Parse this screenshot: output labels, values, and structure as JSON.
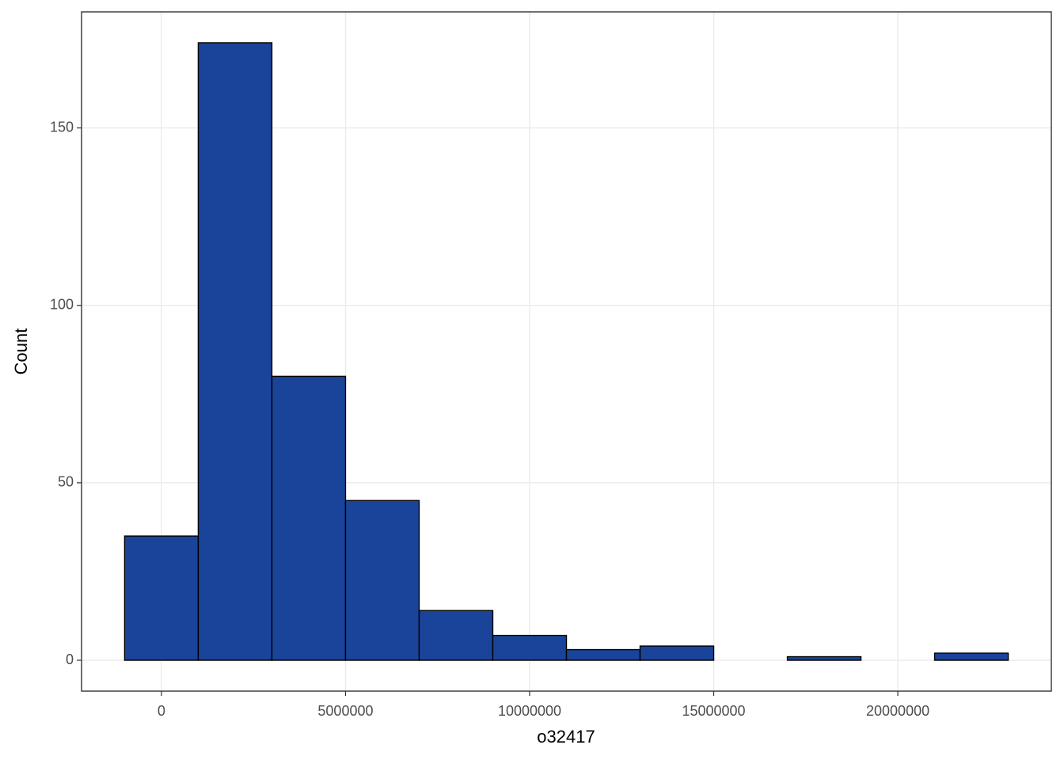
{
  "chart_data": {
    "type": "histogram",
    "x_label": "o32417",
    "y_label": "Count",
    "bins": [
      -1000000,
      1000000,
      3000000,
      5000000,
      7000000,
      9000000,
      11000000,
      13000000,
      15000000,
      17000000,
      19000000,
      21000000,
      23000000
    ],
    "values": [
      35,
      174,
      80,
      45,
      14,
      7,
      3,
      4,
      0,
      1,
      0,
      2
    ],
    "color": "#1a4499",
    "xlim": [
      -2170000,
      24170000
    ],
    "xticks": [
      0,
      5000000,
      10000000,
      15000000,
      20000000
    ],
    "ylim": [
      -8.7,
      182.7
    ],
    "yticks": [
      0,
      50,
      100,
      150
    ],
    "grid": true
  }
}
